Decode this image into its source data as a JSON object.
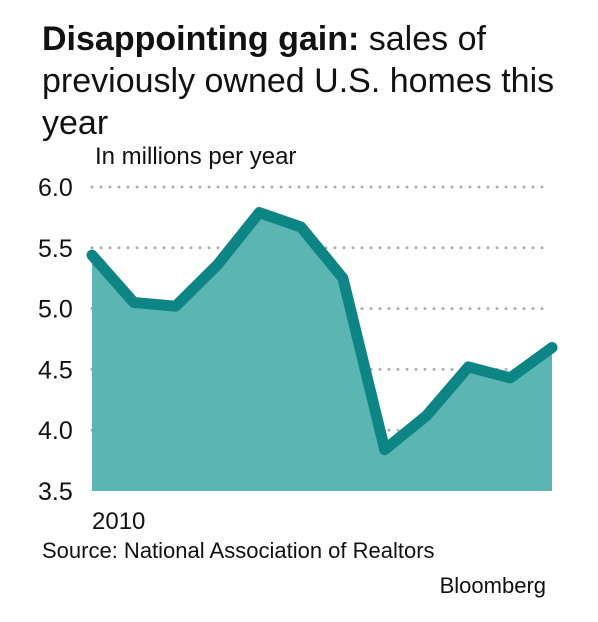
{
  "title": {
    "bold": "Disappointing gain:",
    "rest": "sales of previously owned U.S. homes this year"
  },
  "unit_label": "In millions per year",
  "source": "Source: National Association of Realtors",
  "credit": "Bloomberg",
  "colors": {
    "area": "#5bb5b3",
    "line": "#0e8585",
    "grid": "#b0b0b0"
  },
  "chart_data": {
    "type": "area",
    "x_tick_labels": [
      "2010"
    ],
    "x": [
      "2010-01",
      "2010-02",
      "2010-03",
      "2010-04",
      "2010-05",
      "2010-06",
      "2010-07",
      "2010-08",
      "2010-09",
      "2010-10",
      "2010-11",
      "2010-12"
    ],
    "values": [
      5.44,
      5.05,
      5.02,
      5.36,
      5.79,
      5.67,
      5.25,
      3.84,
      4.12,
      4.52,
      4.43,
      4.68
    ],
    "ylim": [
      3.5,
      6.0
    ],
    "yticks": [
      3.5,
      4.0,
      4.5,
      5.0,
      5.5,
      6.0
    ],
    "ytick_labels": [
      "3.5",
      "4.0",
      "4.5",
      "5.0",
      "5.5",
      "6.0"
    ],
    "grid": "dotted horizontal"
  }
}
